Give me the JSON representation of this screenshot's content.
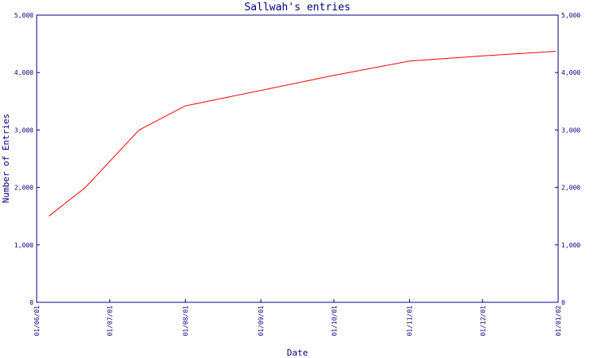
{
  "chart_data": {
    "type": "line",
    "title": "Sallwah's entries",
    "xlabel": "Date",
    "ylabel": "Number of Entries",
    "ylim": [
      0,
      5000
    ],
    "yticks": [
      "0",
      "1,000",
      "2,000",
      "3,000",
      "4,000",
      "5,000"
    ],
    "yticks_right": [
      "0",
      "1,000",
      "2,000",
      "3,000",
      "4,000",
      "5,000"
    ],
    "x_range": [
      "2001-06-01",
      "2002-01-01"
    ],
    "xticks": [
      {
        "date": "2001-06-01",
        "label": "01/06/01"
      },
      {
        "date": "2001-07-01",
        "label": "01/07/01"
      },
      {
        "date": "2001-08-01",
        "label": "01/08/01"
      },
      {
        "date": "2001-09-01",
        "label": "01/09/01"
      },
      {
        "date": "2001-10-01",
        "label": "01/10/01"
      },
      {
        "date": "2001-11-01",
        "label": "01/11/01"
      },
      {
        "date": "2001-12-01",
        "label": "01/12/01"
      },
      {
        "date": "2002-01-01",
        "label": "01/01/02"
      }
    ],
    "grid": false,
    "series": [
      {
        "color": "#ff0000",
        "points": [
          {
            "x": "2001-06-06",
            "y": 1500
          },
          {
            "x": "2001-06-21",
            "y": 2000
          },
          {
            "x": "2001-07-13",
            "y": 3000
          },
          {
            "x": "2001-08-01",
            "y": 3420
          },
          {
            "x": "2001-10-01",
            "y": 3950
          },
          {
            "x": "2001-11-01",
            "y": 4200
          },
          {
            "x": "2001-12-01",
            "y": 4290
          },
          {
            "x": "2001-12-31",
            "y": 4370
          }
        ]
      }
    ]
  },
  "colors": {
    "axis": "#000080",
    "background": "#ffffff"
  }
}
